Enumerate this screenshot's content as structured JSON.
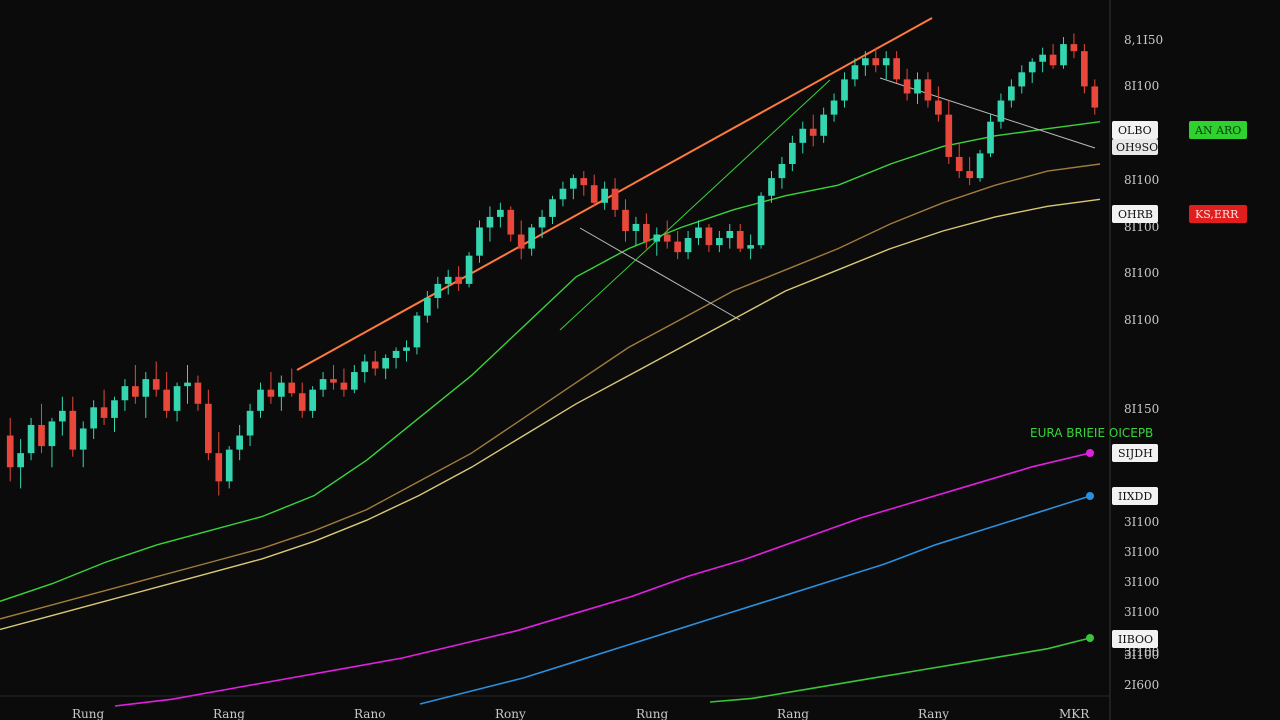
{
  "chart_data": {
    "type": "candlestick",
    "title": "",
    "theme_colors": {
      "background": "#0b0b0b",
      "up_candle": "#34d6b0",
      "down_candle": "#e8473b",
      "trendline": "#ff7a3c",
      "ma_fast": "#39d43a",
      "ma_mid": "#a07c3c",
      "ma_slow": "#d9c878",
      "ind_magenta": "#e020e0",
      "ind_blue": "#2a8fdc",
      "ind_green": "#3ac43a",
      "axis_text": "#c9c9c9",
      "tag_badge_green": "#2fd12f",
      "tag_badge_red": "#e21d1d"
    },
    "y_axis_labels": [
      "8,1I50",
      "8I100",
      "8I100",
      "8I100",
      "8I100",
      "8I100",
      "8I150",
      "3I100",
      "3I100",
      "3I100",
      "3I100",
      "3I100",
      "3I100",
      "2I600"
    ],
    "x_axis_labels": [
      "Rung",
      "Rang",
      "Rano",
      "Rony",
      "Rung",
      "Rang",
      "Rany",
      "MKR"
    ],
    "candles": [
      {
        "o": 1650,
        "h": 1700,
        "l": 1520,
        "c": 1560
      },
      {
        "o": 1560,
        "h": 1640,
        "l": 1500,
        "c": 1600
      },
      {
        "o": 1600,
        "h": 1700,
        "l": 1580,
        "c": 1680
      },
      {
        "o": 1680,
        "h": 1740,
        "l": 1600,
        "c": 1620
      },
      {
        "o": 1620,
        "h": 1700,
        "l": 1560,
        "c": 1690
      },
      {
        "o": 1690,
        "h": 1760,
        "l": 1650,
        "c": 1720
      },
      {
        "o": 1720,
        "h": 1760,
        "l": 1590,
        "c": 1610
      },
      {
        "o": 1610,
        "h": 1690,
        "l": 1560,
        "c": 1670
      },
      {
        "o": 1670,
        "h": 1750,
        "l": 1640,
        "c": 1730
      },
      {
        "o": 1730,
        "h": 1780,
        "l": 1680,
        "c": 1700
      },
      {
        "o": 1700,
        "h": 1760,
        "l": 1660,
        "c": 1750
      },
      {
        "o": 1750,
        "h": 1810,
        "l": 1720,
        "c": 1790
      },
      {
        "o": 1790,
        "h": 1850,
        "l": 1740,
        "c": 1760
      },
      {
        "o": 1760,
        "h": 1830,
        "l": 1700,
        "c": 1810
      },
      {
        "o": 1810,
        "h": 1860,
        "l": 1760,
        "c": 1780
      },
      {
        "o": 1780,
        "h": 1830,
        "l": 1700,
        "c": 1720
      },
      {
        "o": 1720,
        "h": 1800,
        "l": 1690,
        "c": 1790
      },
      {
        "o": 1790,
        "h": 1850,
        "l": 1740,
        "c": 1800
      },
      {
        "o": 1800,
        "h": 1820,
        "l": 1720,
        "c": 1740
      },
      {
        "o": 1740,
        "h": 1780,
        "l": 1580,
        "c": 1600
      },
      {
        "o": 1600,
        "h": 1660,
        "l": 1480,
        "c": 1520
      },
      {
        "o": 1520,
        "h": 1620,
        "l": 1500,
        "c": 1610
      },
      {
        "o": 1610,
        "h": 1680,
        "l": 1580,
        "c": 1650
      },
      {
        "o": 1650,
        "h": 1740,
        "l": 1620,
        "c": 1720
      },
      {
        "o": 1720,
        "h": 1800,
        "l": 1700,
        "c": 1780
      },
      {
        "o": 1780,
        "h": 1830,
        "l": 1740,
        "c": 1760
      },
      {
        "o": 1760,
        "h": 1820,
        "l": 1720,
        "c": 1800
      },
      {
        "o": 1800,
        "h": 1840,
        "l": 1760,
        "c": 1770
      },
      {
        "o": 1770,
        "h": 1800,
        "l": 1700,
        "c": 1720
      },
      {
        "o": 1720,
        "h": 1790,
        "l": 1700,
        "c": 1780
      },
      {
        "o": 1780,
        "h": 1830,
        "l": 1760,
        "c": 1810
      },
      {
        "o": 1810,
        "h": 1850,
        "l": 1780,
        "c": 1800
      },
      {
        "o": 1800,
        "h": 1840,
        "l": 1760,
        "c": 1780
      },
      {
        "o": 1780,
        "h": 1850,
        "l": 1770,
        "c": 1830
      },
      {
        "o": 1830,
        "h": 1880,
        "l": 1800,
        "c": 1860
      },
      {
        "o": 1860,
        "h": 1890,
        "l": 1820,
        "c": 1840
      },
      {
        "o": 1840,
        "h": 1880,
        "l": 1810,
        "c": 1870
      },
      {
        "o": 1870,
        "h": 1900,
        "l": 1840,
        "c": 1890
      },
      {
        "o": 1890,
        "h": 1920,
        "l": 1860,
        "c": 1900
      },
      {
        "o": 1900,
        "h": 2000,
        "l": 1880,
        "c": 1990
      },
      {
        "o": 1990,
        "h": 2060,
        "l": 1970,
        "c": 2040
      },
      {
        "o": 2040,
        "h": 2100,
        "l": 2010,
        "c": 2080
      },
      {
        "o": 2080,
        "h": 2120,
        "l": 2050,
        "c": 2100
      },
      {
        "o": 2100,
        "h": 2130,
        "l": 2060,
        "c": 2080
      },
      {
        "o": 2080,
        "h": 2170,
        "l": 2070,
        "c": 2160
      },
      {
        "o": 2160,
        "h": 2260,
        "l": 2140,
        "c": 2240
      },
      {
        "o": 2240,
        "h": 2300,
        "l": 2200,
        "c": 2270
      },
      {
        "o": 2270,
        "h": 2310,
        "l": 2240,
        "c": 2290
      },
      {
        "o": 2290,
        "h": 2300,
        "l": 2200,
        "c": 2220
      },
      {
        "o": 2220,
        "h": 2260,
        "l": 2150,
        "c": 2180
      },
      {
        "o": 2180,
        "h": 2250,
        "l": 2160,
        "c": 2240
      },
      {
        "o": 2240,
        "h": 2290,
        "l": 2210,
        "c": 2270
      },
      {
        "o": 2270,
        "h": 2330,
        "l": 2250,
        "c": 2320
      },
      {
        "o": 2320,
        "h": 2370,
        "l": 2300,
        "c": 2350
      },
      {
        "o": 2350,
        "h": 2390,
        "l": 2320,
        "c": 2380
      },
      {
        "o": 2380,
        "h": 2400,
        "l": 2330,
        "c": 2360
      },
      {
        "o": 2360,
        "h": 2390,
        "l": 2300,
        "c": 2310
      },
      {
        "o": 2310,
        "h": 2370,
        "l": 2290,
        "c": 2350
      },
      {
        "o": 2350,
        "h": 2380,
        "l": 2270,
        "c": 2290
      },
      {
        "o": 2290,
        "h": 2320,
        "l": 2200,
        "c": 2230
      },
      {
        "o": 2230,
        "h": 2270,
        "l": 2190,
        "c": 2250
      },
      {
        "o": 2250,
        "h": 2280,
        "l": 2180,
        "c": 2200
      },
      {
        "o": 2200,
        "h": 2240,
        "l": 2160,
        "c": 2220
      },
      {
        "o": 2220,
        "h": 2260,
        "l": 2180,
        "c": 2200
      },
      {
        "o": 2200,
        "h": 2230,
        "l": 2150,
        "c": 2170
      },
      {
        "o": 2170,
        "h": 2230,
        "l": 2150,
        "c": 2210
      },
      {
        "o": 2210,
        "h": 2260,
        "l": 2190,
        "c": 2240
      },
      {
        "o": 2240,
        "h": 2250,
        "l": 2170,
        "c": 2190
      },
      {
        "o": 2190,
        "h": 2230,
        "l": 2170,
        "c": 2210
      },
      {
        "o": 2210,
        "h": 2250,
        "l": 2180,
        "c": 2230
      },
      {
        "o": 2230,
        "h": 2250,
        "l": 2170,
        "c": 2180
      },
      {
        "o": 2180,
        "h": 2220,
        "l": 2150,
        "c": 2190
      },
      {
        "o": 2190,
        "h": 2340,
        "l": 2180,
        "c": 2330
      },
      {
        "o": 2330,
        "h": 2400,
        "l": 2310,
        "c": 2380
      },
      {
        "o": 2380,
        "h": 2440,
        "l": 2350,
        "c": 2420
      },
      {
        "o": 2420,
        "h": 2500,
        "l": 2400,
        "c": 2480
      },
      {
        "o": 2480,
        "h": 2540,
        "l": 2450,
        "c": 2520
      },
      {
        "o": 2520,
        "h": 2560,
        "l": 2470,
        "c": 2500
      },
      {
        "o": 2500,
        "h": 2580,
        "l": 2480,
        "c": 2560
      },
      {
        "o": 2560,
        "h": 2620,
        "l": 2540,
        "c": 2600
      },
      {
        "o": 2600,
        "h": 2680,
        "l": 2580,
        "c": 2660
      },
      {
        "o": 2660,
        "h": 2720,
        "l": 2640,
        "c": 2700
      },
      {
        "o": 2700,
        "h": 2740,
        "l": 2670,
        "c": 2720
      },
      {
        "o": 2720,
        "h": 2750,
        "l": 2680,
        "c": 2700
      },
      {
        "o": 2700,
        "h": 2740,
        "l": 2660,
        "c": 2720
      },
      {
        "o": 2720,
        "h": 2740,
        "l": 2650,
        "c": 2660
      },
      {
        "o": 2660,
        "h": 2690,
        "l": 2600,
        "c": 2620
      },
      {
        "o": 2620,
        "h": 2680,
        "l": 2590,
        "c": 2660
      },
      {
        "o": 2660,
        "h": 2680,
        "l": 2580,
        "c": 2600
      },
      {
        "o": 2600,
        "h": 2640,
        "l": 2540,
        "c": 2560
      },
      {
        "o": 2560,
        "h": 2600,
        "l": 2420,
        "c": 2440
      },
      {
        "o": 2440,
        "h": 2480,
        "l": 2380,
        "c": 2400
      },
      {
        "o": 2400,
        "h": 2440,
        "l": 2360,
        "c": 2380
      },
      {
        "o": 2380,
        "h": 2460,
        "l": 2370,
        "c": 2450
      },
      {
        "o": 2450,
        "h": 2560,
        "l": 2440,
        "c": 2540
      },
      {
        "o": 2540,
        "h": 2620,
        "l": 2520,
        "c": 2600
      },
      {
        "o": 2600,
        "h": 2660,
        "l": 2580,
        "c": 2640
      },
      {
        "o": 2640,
        "h": 2700,
        "l": 2620,
        "c": 2680
      },
      {
        "o": 2680,
        "h": 2720,
        "l": 2650,
        "c": 2710
      },
      {
        "o": 2710,
        "h": 2750,
        "l": 2680,
        "c": 2730
      },
      {
        "o": 2730,
        "h": 2760,
        "l": 2690,
        "c": 2700
      },
      {
        "o": 2700,
        "h": 2780,
        "l": 2690,
        "c": 2760
      },
      {
        "o": 2760,
        "h": 2790,
        "l": 2720,
        "c": 2740
      },
      {
        "o": 2740,
        "h": 2760,
        "l": 2620,
        "c": 2640
      },
      {
        "o": 2640,
        "h": 2660,
        "l": 2560,
        "c": 2580
      }
    ],
    "moving_averages": [
      {
        "color_key": "ma_fast",
        "values": [
          1180,
          1230,
          1290,
          1340,
          1380,
          1420,
          1480,
          1580,
          1700,
          1820,
          1960,
          2100,
          2180,
          2240,
          2290,
          2330,
          2360,
          2420,
          2470,
          2500,
          2520,
          2540
        ]
      },
      {
        "color_key": "ma_mid",
        "values": [
          1130,
          1170,
          1210,
          1250,
          1290,
          1330,
          1380,
          1440,
          1520,
          1600,
          1700,
          1800,
          1900,
          1980,
          2060,
          2120,
          2180,
          2250,
          2310,
          2360,
          2400,
          2420
        ]
      },
      {
        "color_key": "ma_slow",
        "values": [
          1100,
          1140,
          1180,
          1220,
          1260,
          1300,
          1350,
          1410,
          1480,
          1560,
          1650,
          1740,
          1820,
          1900,
          1980,
          2060,
          2120,
          2180,
          2230,
          2270,
          2300,
          2320
        ]
      }
    ],
    "indicators": [
      {
        "color_key": "ind_magenta",
        "values": [
          1000,
          1020,
          1050,
          1080,
          1110,
          1140,
          1180,
          1220,
          1270,
          1320,
          1380,
          1430,
          1490,
          1550,
          1600,
          1650,
          1700,
          1740
        ]
      },
      {
        "color_key": "ind_blue",
        "values": [
          1020,
          1060,
          1100,
          1150,
          1200,
          1250,
          1300,
          1350,
          1400,
          1450,
          1510,
          1560,
          1610,
          1660
        ]
      },
      {
        "color_key": "ind_green",
        "values": [
          1000,
          1010,
          1030,
          1050,
          1070,
          1090,
          1110,
          1130,
          1150,
          1180
        ]
      }
    ],
    "price_tags": [
      {
        "text": "OLBO",
        "sub": "OH9SO",
        "badge": "AN ARO",
        "badge_color": "tag_badge_green"
      },
      {
        "text": "OHRB",
        "sub": "",
        "badge": "KS,ERR",
        "badge_color": "tag_badge_red"
      },
      {
        "text": "SIJDH",
        "sub": "",
        "badge": "",
        "badge_color": ""
      },
      {
        "text": "IIXDD",
        "sub": "",
        "badge": "",
        "badge_color": ""
      },
      {
        "text": "IIBOO",
        "sub": "",
        "badge": "",
        "badge_color": ""
      }
    ],
    "indicator_legend": "EURA BRIEIE OICEPB"
  }
}
